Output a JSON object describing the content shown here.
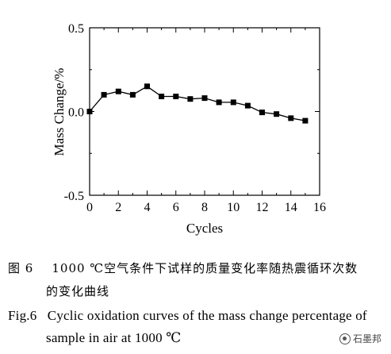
{
  "chart_data": {
    "type": "line",
    "xlabel": "Cycles",
    "ylabel": "Mass Change/%",
    "xlim": [
      0,
      16
    ],
    "ylim": [
      -0.5,
      0.5
    ],
    "xticks": [
      "0",
      "2",
      "4",
      "6",
      "8",
      "10",
      "12",
      "14",
      "16"
    ],
    "yticks": [
      "0.5",
      "0.0",
      "-0.5"
    ],
    "grid": false,
    "x": [
      0,
      1,
      2,
      3,
      4,
      5,
      6,
      7,
      8,
      9,
      10,
      11,
      12,
      13,
      14,
      15
    ],
    "y": [
      0.0,
      0.1,
      0.12,
      0.1,
      0.15,
      0.09,
      0.09,
      0.075,
      0.08,
      0.055,
      0.055,
      0.035,
      -0.005,
      -0.015,
      -0.04,
      -0.055
    ]
  },
  "caption": {
    "zh_line1_num": "图 6",
    "zh_line1_text": "1000 ℃空气条件下试样的质量变化率随热震循环次数",
    "zh_line2": "的变化曲线",
    "en_line1_num": "Fig.6",
    "en_line1_text": "Cyclic oxidation curves of the mass change percentage of",
    "en_line2": "sample in air at 1000  ℃"
  },
  "watermark": {
    "text": "石墨邦",
    "icon": "wechat-logo-icon"
  }
}
